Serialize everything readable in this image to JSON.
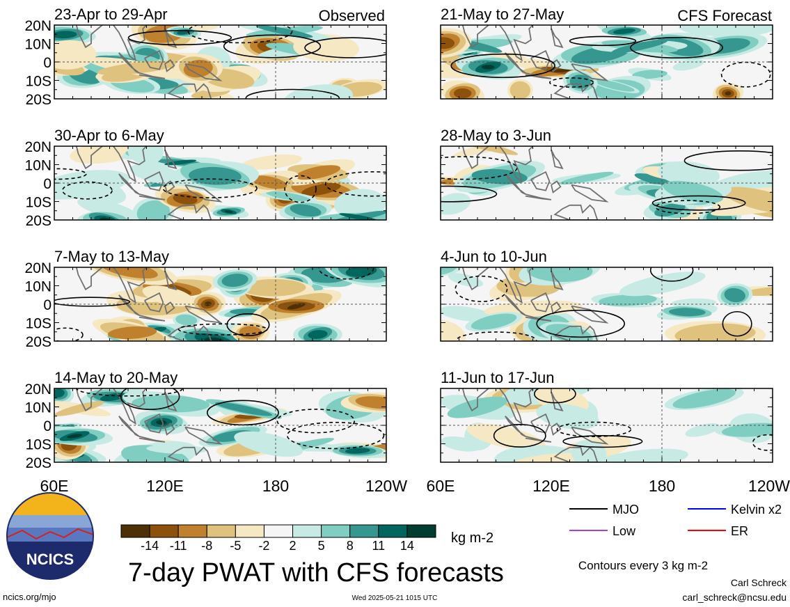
{
  "title": "7-day PWAT with CFS forecasts",
  "observed_label": "Observed",
  "forecast_label": "CFS Forecast",
  "units": "kg m-2",
  "contour_note": "Contours every 3 kg m-2",
  "author": "Carl Schreck",
  "email": "carl_schreck@ncsu.edu",
  "website": "ncics.org/mjo",
  "timestamp": "Wed 2025-05-21 1015 UTC",
  "logo_text": "NCICS",
  "legend": [
    {
      "label": "MJO",
      "color": "#000000"
    },
    {
      "label": "Kelvin x2",
      "color": "#0000ff"
    },
    {
      "label": "Low",
      "color": "#a040e0"
    },
    {
      "label": "ER",
      "color": "#ff0000"
    }
  ],
  "chart_data": {
    "type": "heatmap",
    "variable": "7-day PWAT anomaly",
    "x_ticks": [
      "60E",
      "120E",
      "180",
      "120W"
    ],
    "y_ticks": [
      "20N",
      "10N",
      "0",
      "10S",
      "20S"
    ],
    "lon_range": [
      "60E",
      "120W"
    ],
    "lat_range": [
      "20S",
      "20N"
    ],
    "colorbar": {
      "ticks": [
        "-14",
        "-11",
        "-8",
        "-5",
        "-2",
        "2",
        "5",
        "8",
        "11",
        "14"
      ],
      "colors": [
        "#4d3005",
        "#8c510a",
        "#bf812d",
        "#dfc27d",
        "#f6e8c3",
        "#f5f5f5",
        "#c7eae5",
        "#80cdc1",
        "#35978f",
        "#01665e",
        "#003c30"
      ]
    },
    "panels": [
      {
        "column": "observed",
        "label": "23-Apr to 29-Apr"
      },
      {
        "column": "observed",
        "label": "30-Apr to 6-May"
      },
      {
        "column": "observed",
        "label": "7-May to 13-May"
      },
      {
        "column": "observed",
        "label": "14-May to 20-May"
      },
      {
        "column": "forecast",
        "label": "21-May to 27-May"
      },
      {
        "column": "forecast",
        "label": "28-May to 3-Jun"
      },
      {
        "column": "forecast",
        "label": "4-Jun to 10-Jun"
      },
      {
        "column": "forecast",
        "label": "11-Jun to 17-Jun"
      }
    ]
  }
}
